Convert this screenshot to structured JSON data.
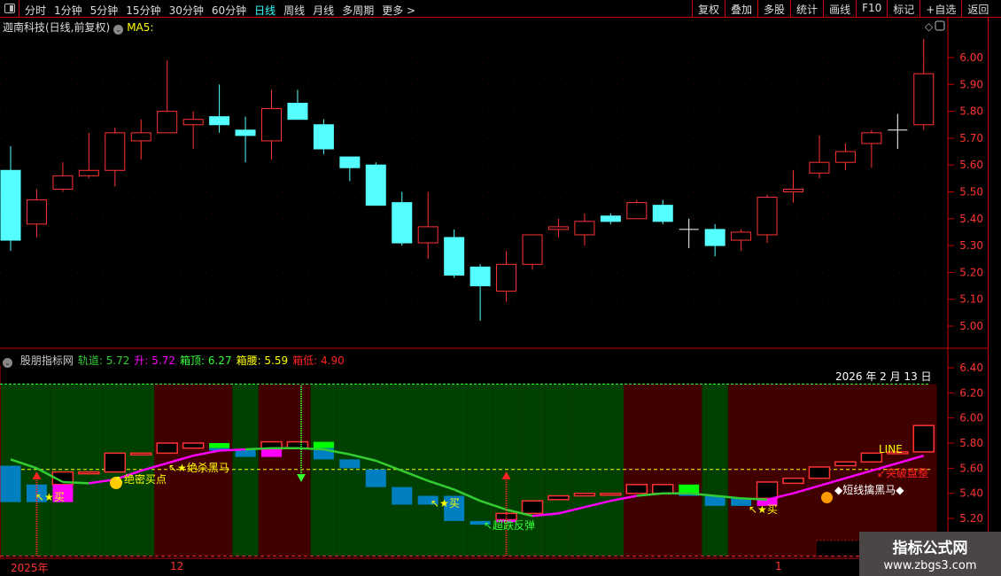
{
  "toolbar": {
    "periods": [
      "分时",
      "1分钟",
      "5分钟",
      "15分钟",
      "30分钟",
      "60分钟",
      "日线",
      "周线",
      "月线",
      "多周期",
      "更多 >"
    ],
    "active": "日线",
    "buttons": [
      "复权",
      "叠加",
      "多股",
      "统计",
      "画线",
      "F10",
      "标记",
      "+自选",
      "返回"
    ]
  },
  "main": {
    "title": "迦南科技(日线,前复权)",
    "ma_label": "MA5:",
    "price_ticks": [
      "6.00",
      "5.90",
      "5.80",
      "5.70",
      "5.60",
      "5.50",
      "5.40",
      "5.30",
      "5.20",
      "5.10",
      "5.00"
    ],
    "candles": [
      [
        5.58,
        5.32,
        5.67,
        5.28
      ],
      [
        5.38,
        5.47,
        5.51,
        5.33
      ],
      [
        5.51,
        5.56,
        5.61,
        5.5
      ],
      [
        5.56,
        5.58,
        5.72,
        5.55
      ],
      [
        5.58,
        5.72,
        5.74,
        5.52
      ],
      [
        5.69,
        5.72,
        5.77,
        5.62
      ],
      [
        5.72,
        5.8,
        5.99,
        5.72
      ],
      [
        5.75,
        5.77,
        5.8,
        5.66
      ],
      [
        5.78,
        5.75,
        5.9,
        5.72
      ],
      [
        5.73,
        5.71,
        5.78,
        5.61
      ],
      [
        5.69,
        5.81,
        5.88,
        5.62
      ],
      [
        5.83,
        5.77,
        5.88,
        5.77
      ],
      [
        5.75,
        5.66,
        5.77,
        5.64
      ],
      [
        5.63,
        5.59,
        5.63,
        5.54
      ],
      [
        5.6,
        5.45,
        5.61,
        5.45
      ],
      [
        5.46,
        5.31,
        5.5,
        5.3
      ],
      [
        5.31,
        5.37,
        5.5,
        5.25
      ],
      [
        5.33,
        5.19,
        5.36,
        5.18
      ],
      [
        5.22,
        5.15,
        5.23,
        5.02
      ],
      [
        5.13,
        5.23,
        5.28,
        5.09
      ],
      [
        5.23,
        5.34,
        5.34,
        5.21
      ],
      [
        5.36,
        5.37,
        5.4,
        5.33
      ],
      [
        5.34,
        5.39,
        5.42,
        5.3
      ],
      [
        5.41,
        5.39,
        5.42,
        5.38
      ],
      [
        5.4,
        5.46,
        5.47,
        5.4
      ],
      [
        5.45,
        5.39,
        5.47,
        5.38
      ],
      [
        5.36,
        5.36,
        5.4,
        5.29
      ],
      [
        5.36,
        5.3,
        5.38,
        5.26
      ],
      [
        5.32,
        5.35,
        5.36,
        5.28
      ],
      [
        5.34,
        5.48,
        5.49,
        5.31
      ],
      [
        5.5,
        5.51,
        5.58,
        5.46
      ],
      [
        5.57,
        5.61,
        5.71,
        5.55
      ],
      [
        5.61,
        5.65,
        5.68,
        5.58
      ],
      [
        5.68,
        5.72,
        5.73,
        5.59
      ],
      [
        5.73,
        5.73,
        5.79,
        5.66
      ],
      [
        5.75,
        5.94,
        6.07,
        5.73
      ]
    ]
  },
  "indicator": {
    "name": "股朋指标网",
    "values": [
      {
        "label": "轨道:",
        "value": "5.72",
        "color": "#3c3"
      },
      {
        "label": "升:",
        "value": "5.72",
        "color": "#f0f"
      },
      {
        "label": "箱顶:",
        "value": "6.27",
        "color": "#3f3"
      },
      {
        "label": "箱腰:",
        "value": "5.59",
        "color": "#ff0"
      },
      {
        "label": "箱低:",
        "value": "4.90",
        "color": "#f22"
      }
    ],
    "date": "2026 年 2 月 13 日",
    "price_ticks": [
      "6.40",
      "6.20",
      "6.00",
      "5.80",
      "5.60",
      "5.40",
      "5.20"
    ],
    "box_top": 6.27,
    "box_mid": 5.59,
    "box_low": 4.9,
    "bands": [
      "g",
      "g",
      "g",
      "g",
      "g",
      "g",
      "r",
      "r",
      "r",
      "g",
      "r",
      "r",
      "g",
      "g",
      "g",
      "g",
      "g",
      "g",
      "g",
      "g",
      "g",
      "g",
      "g",
      "g",
      "r",
      "r",
      "r",
      "g",
      "r",
      "r",
      "r",
      "r",
      "r",
      "r",
      "r",
      "r"
    ],
    "segments": [
      [
        [
          5.62,
          5.33,
          "b"
        ]
      ],
      [
        [
          5.47,
          5.33,
          "b"
        ]
      ],
      [
        [
          5.57,
          5.47,
          "h"
        ],
        [
          5.47,
          5.33,
          "m"
        ]
      ],
      [
        [
          5.57,
          5.565,
          "h"
        ]
      ],
      [
        [
          5.72,
          5.57,
          "h"
        ]
      ],
      [
        [
          5.72,
          5.715,
          "h"
        ]
      ],
      [
        [
          5.8,
          5.72,
          "h"
        ]
      ],
      [
        [
          5.8,
          5.76,
          "h"
        ]
      ],
      [
        [
          5.8,
          5.76,
          "g"
        ],
        [
          5.76,
          5.74,
          "b"
        ]
      ],
      [
        [
          5.75,
          5.69,
          "b"
        ]
      ],
      [
        [
          5.81,
          5.75,
          "h"
        ],
        [
          5.75,
          5.69,
          "m"
        ]
      ],
      [
        [
          5.81,
          5.76,
          "h"
        ]
      ],
      [
        [
          5.81,
          5.76,
          "g"
        ],
        [
          5.76,
          5.67,
          "b"
        ]
      ],
      [
        [
          5.67,
          5.6,
          "b"
        ]
      ],
      [
        [
          5.59,
          5.45,
          "b"
        ]
      ],
      [
        [
          5.45,
          5.31,
          "b"
        ]
      ],
      [
        [
          5.38,
          5.31,
          "b"
        ]
      ],
      [
        [
          5.38,
          5.18,
          "b"
        ]
      ],
      [
        [
          5.18,
          5.15,
          "b"
        ]
      ],
      [
        [
          5.24,
          5.19,
          "h"
        ],
        [
          5.19,
          5.17,
          "m"
        ]
      ],
      [
        [
          5.34,
          5.24,
          "h"
        ]
      ],
      [
        [
          5.38,
          5.35,
          "h"
        ]
      ],
      [
        [
          5.4,
          5.38,
          "h"
        ]
      ],
      [
        [
          5.4,
          5.395,
          "h"
        ]
      ],
      [
        [
          5.47,
          5.4,
          "h"
        ]
      ],
      [
        [
          5.47,
          5.4,
          "h"
        ]
      ],
      [
        [
          5.47,
          5.4,
          "g"
        ],
        [
          5.4,
          5.38,
          "b"
        ]
      ],
      [
        [
          5.38,
          5.3,
          "b"
        ]
      ],
      [
        [
          5.36,
          5.3,
          "b"
        ]
      ],
      [
        [
          5.49,
          5.36,
          "h"
        ],
        [
          5.36,
          5.3,
          "m"
        ]
      ],
      [
        [
          5.52,
          5.48,
          "h"
        ]
      ],
      [
        [
          5.61,
          5.52,
          "h"
        ]
      ],
      [
        [
          5.65,
          5.62,
          "h"
        ]
      ],
      [
        [
          5.72,
          5.65,
          "h"
        ]
      ],
      [
        [
          5.73,
          5.72,
          "h"
        ]
      ],
      [
        [
          5.94,
          5.73,
          "h"
        ]
      ]
    ],
    "track": [
      5.67,
      5.6,
      5.49,
      5.48,
      5.51,
      5.58,
      5.64,
      5.7,
      5.74,
      5.75,
      5.76,
      5.76,
      5.75,
      5.71,
      5.66,
      5.58,
      5.5,
      5.43,
      5.34,
      5.27,
      5.22,
      5.24,
      5.29,
      5.34,
      5.38,
      5.4,
      5.4,
      5.38,
      5.36,
      5.35,
      5.4,
      5.46,
      5.52,
      5.58,
      5.64,
      5.7
    ],
    "track_colors": [
      "g",
      "g",
      "g",
      "m",
      "m",
      "m",
      "m",
      "m",
      "m",
      "g",
      "g",
      "g",
      "g",
      "g",
      "g",
      "g",
      "g",
      "g",
      "g",
      "g",
      "m",
      "m",
      "m",
      "m",
      "g",
      "g",
      "g",
      "g",
      "g",
      "m",
      "m",
      "m",
      "m",
      "m",
      "m"
    ],
    "signals": {
      "buy1": "↖★买",
      "secret": "↖绝密买点",
      "kill": "↖★绝杀黑马",
      "buy2": "↖★买",
      "rebound": "↖超跌反弹",
      "buy3": "↖★买",
      "catch": "◆短线擒黑马◆",
      "breakout": "↙突破盘整",
      "line": "LINE"
    },
    "colors": {
      "up": "#ff3232",
      "down": "#54ffff",
      "blue": "#0080c0",
      "magenta": "#ff00ff",
      "green": "#00ff00",
      "band_green": "#004000",
      "band_red": "#400000"
    }
  },
  "time_axis": [
    "2025年",
    "12",
    "1"
  ],
  "watermark": {
    "title": "指标公式网",
    "url": "www.zbgs3.com"
  }
}
